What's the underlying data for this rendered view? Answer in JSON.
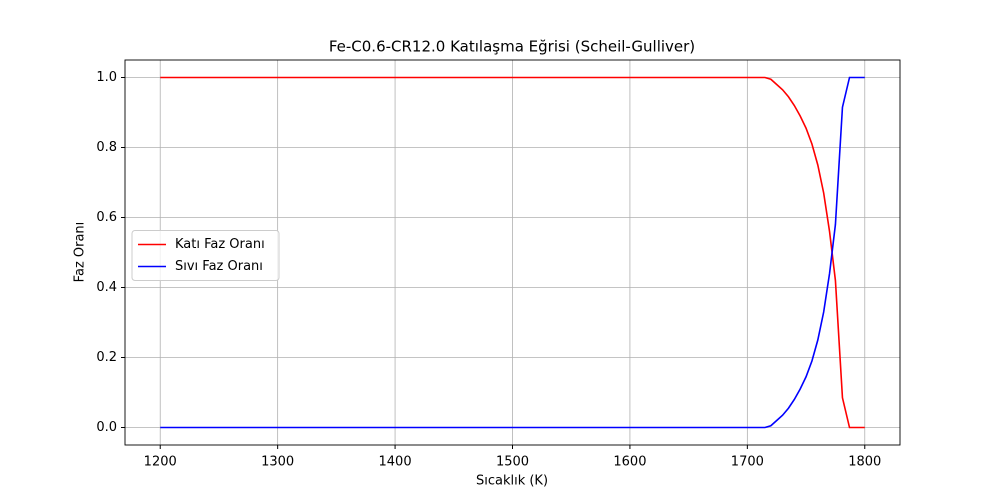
{
  "chart_data": {
    "type": "line",
    "title": "Fe-C0.6-CR12.0 Katılaşma Eğrisi (Scheil-Gulliver)",
    "xlabel": "Sıcaklık (K)",
    "ylabel": "Faz Oranı",
    "x": [
      1200,
      1715,
      1720,
      1725,
      1730,
      1735,
      1740,
      1745,
      1750,
      1755,
      1760,
      1765,
      1770,
      1775,
      1781,
      1787,
      1800
    ],
    "series": [
      {
        "name": "Katı Faz Oranı",
        "color": "#ff0000",
        "values": [
          1,
          1,
          0.995,
          0.98,
          0.965,
          0.945,
          0.92,
          0.89,
          0.855,
          0.81,
          0.75,
          0.67,
          0.56,
          0.42,
          0.085,
          0,
          0
        ]
      },
      {
        "name": "Sıvı Faz Oranı",
        "color": "#0000ff",
        "values": [
          0,
          0,
          0.005,
          0.02,
          0.035,
          0.055,
          0.08,
          0.11,
          0.145,
          0.19,
          0.25,
          0.33,
          0.44,
          0.58,
          0.915,
          1,
          1
        ]
      }
    ],
    "xlim": [
      1170,
      1830
    ],
    "ylim": [
      -0.05,
      1.05
    ],
    "xticks": [
      1200,
      1300,
      1400,
      1500,
      1600,
      1700,
      1800
    ],
    "yticks": [
      {
        "value": 0,
        "label": "0.0"
      },
      {
        "value": 0.2,
        "label": "0.2"
      },
      {
        "value": 0.4,
        "label": "0.4"
      },
      {
        "value": 0.6,
        "label": "0.6"
      },
      {
        "value": 0.8,
        "label": "0.8"
      },
      {
        "value": 1,
        "label": "1.0"
      }
    ],
    "grid": true,
    "legend": "center left"
  }
}
